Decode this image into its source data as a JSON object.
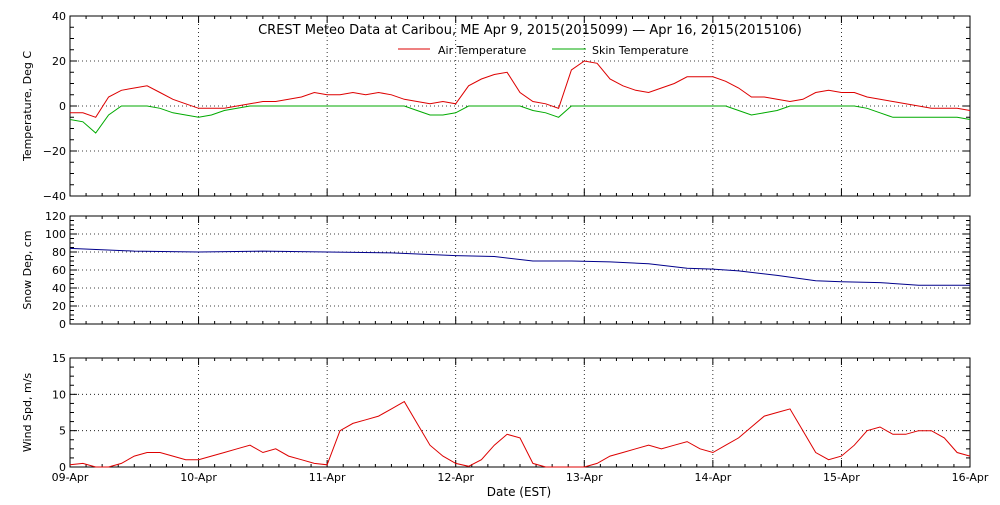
{
  "title": "CREST Meteo Data at Caribou, ME   Apr  9, 2015(2015099) — Apr 16, 2015(2015106)",
  "xlabel": "Date (EST)",
  "x_ticks": [
    "09-Apr",
    "10-Apr",
    "11-Apr",
    "12-Apr",
    "13-Apr",
    "14-Apr",
    "15-Apr",
    "16-Apr"
  ],
  "colors": {
    "air": "#dd0000",
    "skin": "#00aa00",
    "snow": "#00008b",
    "wind": "#dd0000"
  },
  "chart_data": [
    {
      "type": "line",
      "ylabel": "Temperature, Deg C",
      "ylim": [
        -40,
        40
      ],
      "y_ticks": [
        "40",
        "20",
        "0",
        "−20",
        "−40"
      ],
      "grid": true,
      "legend_position": "top-center",
      "x": [
        0,
        0.1,
        0.2,
        0.3,
        0.4,
        0.5,
        0.6,
        0.7,
        0.8,
        0.9,
        1.0,
        1.1,
        1.2,
        1.3,
        1.4,
        1.5,
        1.6,
        1.7,
        1.8,
        1.9,
        2.0,
        2.1,
        2.2,
        2.3,
        2.4,
        2.5,
        2.6,
        2.7,
        2.8,
        2.9,
        3.0,
        3.1,
        3.2,
        3.3,
        3.4,
        3.5,
        3.6,
        3.7,
        3.8,
        3.9,
        4.0,
        4.1,
        4.2,
        4.3,
        4.4,
        4.5,
        4.6,
        4.7,
        4.8,
        4.9,
        5.0,
        5.1,
        5.2,
        5.3,
        5.4,
        5.5,
        5.6,
        5.7,
        5.8,
        5.9,
        6.0,
        6.1,
        6.2,
        6.3,
        6.4,
        6.5,
        6.6,
        6.7,
        6.8,
        6.9,
        7.0
      ],
      "series": [
        {
          "name": "Air Temperature",
          "values": [
            -3,
            -3,
            -5,
            4,
            7,
            8,
            9,
            6,
            3,
            1,
            -1,
            -1,
            -1,
            0,
            1,
            2,
            2,
            3,
            4,
            6,
            5,
            5,
            6,
            5,
            6,
            5,
            3,
            2,
            1,
            2,
            1,
            9,
            12,
            14,
            15,
            6,
            2,
            1,
            -1,
            16,
            20,
            19,
            12,
            9,
            7,
            6,
            8,
            10,
            13,
            13,
            13,
            11,
            8,
            4,
            4,
            3,
            2,
            3,
            6,
            7,
            6,
            6,
            4,
            3,
            2,
            1,
            0,
            -1,
            -1,
            -1,
            -2
          ]
        },
        {
          "name": "Skin Temperature",
          "values": [
            -6,
            -7,
            -12,
            -4,
            0,
            0,
            0,
            -1,
            -3,
            -4,
            -5,
            -4,
            -2,
            -1,
            0,
            0,
            0,
            0,
            0,
            0,
            0,
            0,
            0,
            0,
            0,
            0,
            0,
            -2,
            -4,
            -4,
            -3,
            0,
            0,
            0,
            0,
            0,
            -2,
            -3,
            -5,
            0,
            0,
            0,
            0,
            0,
            0,
            0,
            0,
            0,
            0,
            0,
            0,
            0,
            -2,
            -4,
            -3,
            -2,
            0,
            0,
            0,
            0,
            0,
            0,
            -1,
            -3,
            -5,
            -5,
            -5,
            -5,
            -5,
            -5,
            -6
          ]
        }
      ]
    },
    {
      "type": "line",
      "ylabel": "Snow Dep, cm",
      "ylim": [
        0,
        120
      ],
      "y_ticks": [
        "120",
        "100",
        "80",
        "60",
        "40",
        "20",
        "0"
      ],
      "grid": true,
      "x": [
        0,
        0.5,
        1.0,
        1.5,
        2.0,
        2.5,
        3.0,
        3.3,
        3.6,
        3.9,
        4.2,
        4.5,
        4.8,
        5.0,
        5.2,
        5.5,
        5.8,
        6.0,
        6.3,
        6.6,
        7.0
      ],
      "series": [
        {
          "name": "",
          "values": [
            84,
            81,
            80,
            81,
            80,
            79,
            76,
            75,
            70,
            70,
            69,
            67,
            62,
            61,
            59,
            54,
            48,
            47,
            46,
            43,
            43
          ]
        }
      ]
    },
    {
      "type": "line",
      "ylabel": "Wind Spd, m/s",
      "ylim": [
        0,
        15
      ],
      "y_ticks": [
        "15",
        "10",
        "5",
        "0"
      ],
      "grid": true,
      "x": [
        0,
        0.1,
        0.2,
        0.3,
        0.4,
        0.5,
        0.6,
        0.7,
        0.8,
        0.9,
        1.0,
        1.1,
        1.2,
        1.3,
        1.4,
        1.5,
        1.6,
        1.7,
        1.8,
        1.9,
        2.0,
        2.1,
        2.2,
        2.3,
        2.4,
        2.5,
        2.6,
        2.7,
        2.8,
        2.9,
        3.0,
        3.1,
        3.2,
        3.3,
        3.4,
        3.5,
        3.6,
        3.7,
        3.8,
        3.9,
        4.0,
        4.1,
        4.2,
        4.3,
        4.4,
        4.5,
        4.6,
        4.7,
        4.8,
        4.9,
        5.0,
        5.1,
        5.2,
        5.3,
        5.4,
        5.5,
        5.6,
        5.7,
        5.8,
        5.9,
        6.0,
        6.1,
        6.2,
        6.3,
        6.4,
        6.5,
        6.6,
        6.7,
        6.8,
        6.9,
        7.0
      ],
      "series": [
        {
          "name": "",
          "values": [
            0.3,
            0.5,
            0,
            0,
            0.5,
            1.5,
            2,
            2,
            1.5,
            1,
            1,
            1.5,
            2,
            2.5,
            3,
            2,
            2.5,
            1.5,
            1,
            0.5,
            0.3,
            5,
            6,
            6.5,
            7,
            8,
            9,
            6,
            3,
            1.5,
            0.5,
            0.1,
            1,
            3,
            4.5,
            4,
            0.5,
            0,
            0,
            0,
            0,
            0.5,
            1.5,
            2,
            2.5,
            3,
            2.5,
            3,
            3.5,
            2.5,
            2,
            3,
            4,
            5.5,
            7,
            7.5,
            8,
            5,
            2,
            1,
            1.5,
            3,
            5,
            5.5,
            4.5,
            4.5,
            5,
            5,
            4,
            2,
            1.5
          ]
        }
      ]
    }
  ]
}
